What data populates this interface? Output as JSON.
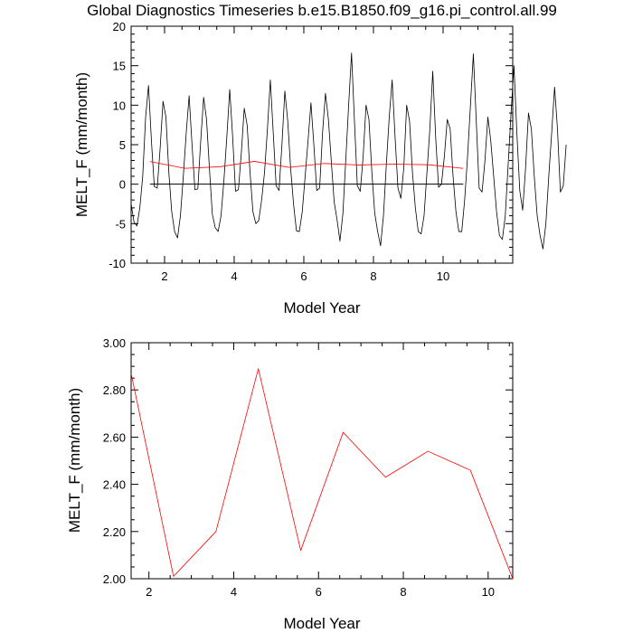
{
  "title": "Global Diagnostics Timeseries b.e15.B1850.f09_g16.pi_control.all.99",
  "chart_data": [
    {
      "type": "line",
      "xlabel": "Model Year",
      "ylabel": "MELT_F (mm/month)",
      "xlim": [
        1.04,
        12.0
      ],
      "ylim": [
        -10,
        20
      ],
      "xticks": [
        "2",
        "4",
        "6",
        "8",
        "10"
      ],
      "yticks": [
        "-10",
        "-5",
        "0",
        "5",
        "10",
        "15",
        "20"
      ],
      "zero_line": true,
      "series": [
        {
          "color": "#000000",
          "x_start": 1.04,
          "x_step": 0.0833,
          "values": [
            -2.5,
            -4.8,
            -5.3,
            -3.0,
            1.0,
            8.5,
            12.5,
            5.5,
            -0.3,
            -0.5,
            4.5,
            10.5,
            8.5,
            1.5,
            -3.5,
            -6.0,
            -6.8,
            -4.0,
            1.0,
            6.5,
            11.2,
            5.0,
            -0.7,
            -0.6,
            5.5,
            11.0,
            8.2,
            2.0,
            -3.8,
            -5.5,
            -6.0,
            -4.0,
            0.5,
            6.0,
            12.0,
            6.0,
            -0.9,
            -0.7,
            4.0,
            9.6,
            7.5,
            1.5,
            -3.5,
            -5.0,
            -4.6,
            -2.0,
            1.5,
            7.0,
            13.2,
            6.5,
            -0.2,
            -0.8,
            5.0,
            11.8,
            8.0,
            2.0,
            -2.5,
            -5.9,
            -6.0,
            -3.5,
            1.0,
            5.5,
            10.3,
            5.0,
            -0.8,
            -0.5,
            6.5,
            11.5,
            8.3,
            3.0,
            -2.2,
            -4.5,
            -7.2,
            -3.8,
            3.0,
            10.0,
            16.6,
            8.0,
            -0.2,
            -0.9,
            3.5,
            10.0,
            8.2,
            1.5,
            -3.7,
            -6.0,
            -7.8,
            -4.0,
            2.5,
            8.5,
            13.2,
            6.0,
            -0.5,
            -1.8,
            2.0,
            10.0,
            8.0,
            1.5,
            -3.0,
            -6.0,
            -6.3,
            -4.0,
            1.5,
            7.0,
            14.3,
            6.0,
            -0.4,
            0.0,
            3.5,
            8.2,
            7.0,
            1.0,
            -3.5,
            -6.0,
            -6.0,
            -2.0,
            3.5,
            10.0,
            16.5,
            8.0,
            -0.5,
            -1.0,
            3.0,
            8.5,
            5.5,
            1.0,
            -3.5,
            -6.5,
            -7.0,
            -4.0,
            2.5,
            9.0,
            15.0,
            6.5,
            -0.8,
            -3.3,
            2.0,
            9.0,
            7.0,
            1.0,
            -4.0,
            -6.5,
            -8.2,
            -5.0,
            1.0,
            6.5,
            12.3,
            7.0,
            -1.0,
            -0.2,
            5.0
          ]
        },
        {
          "color": "#ff0000",
          "x": [
            1.58,
            2.58,
            3.58,
            4.58,
            5.58,
            6.58,
            7.58,
            8.58,
            9.58,
            10.58
          ],
          "values": [
            2.87,
            2.01,
            2.2,
            2.89,
            2.12,
            2.62,
            2.43,
            2.54,
            2.46,
            2.0
          ]
        }
      ]
    },
    {
      "type": "line",
      "xlabel": "Model Year",
      "ylabel": "MELT_F (mm/month)",
      "xlim": [
        1.58,
        10.58
      ],
      "ylim": [
        2.0,
        3.0
      ],
      "xticks": [
        "2",
        "4",
        "6",
        "8",
        "10"
      ],
      "yticks": [
        "2.00",
        "2.20",
        "2.40",
        "2.60",
        "2.80",
        "3.00"
      ],
      "series": [
        {
          "color": "#ff0000",
          "x": [
            1.58,
            2.58,
            3.58,
            4.58,
            5.58,
            6.58,
            7.58,
            8.58,
            9.58,
            10.58
          ],
          "values": [
            2.87,
            2.01,
            2.2,
            2.89,
            2.12,
            2.62,
            2.43,
            2.54,
            2.46,
            2.0
          ]
        }
      ]
    }
  ]
}
